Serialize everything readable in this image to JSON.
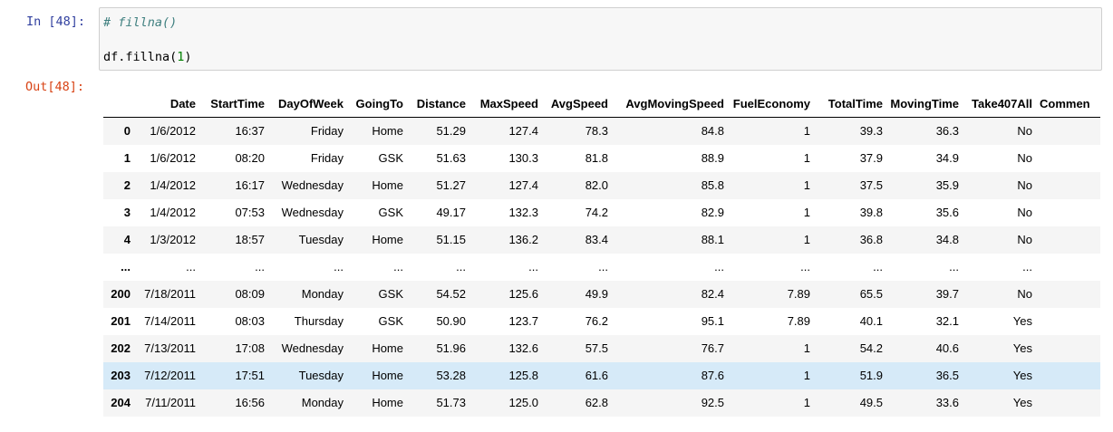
{
  "cell": {
    "in_prompt": "In [48]:",
    "out_prompt": "Out[48]:",
    "code_comment": "# fillna()",
    "code_prefix": "df.fillna(",
    "code_arg": "1",
    "code_suffix": ")"
  },
  "table": {
    "columns": [
      "Date",
      "StartTime",
      "DayOfWeek",
      "GoingTo",
      "Distance",
      "MaxSpeed",
      "AvgSpeed",
      "AvgMovingSpeed",
      "FuelEconomy",
      "TotalTime",
      "MovingTime",
      "Take407All",
      "Commen"
    ],
    "rows": [
      {
        "index": "0",
        "cells": [
          "1/6/2012",
          "16:37",
          "Friday",
          "Home",
          "51.29",
          "127.4",
          "78.3",
          "84.8",
          "1",
          "39.3",
          "36.3",
          "No",
          ""
        ]
      },
      {
        "index": "1",
        "cells": [
          "1/6/2012",
          "08:20",
          "Friday",
          "GSK",
          "51.63",
          "130.3",
          "81.8",
          "88.9",
          "1",
          "37.9",
          "34.9",
          "No",
          ""
        ]
      },
      {
        "index": "2",
        "cells": [
          "1/4/2012",
          "16:17",
          "Wednesday",
          "Home",
          "51.27",
          "127.4",
          "82.0",
          "85.8",
          "1",
          "37.5",
          "35.9",
          "No",
          ""
        ]
      },
      {
        "index": "3",
        "cells": [
          "1/4/2012",
          "07:53",
          "Wednesday",
          "GSK",
          "49.17",
          "132.3",
          "74.2",
          "82.9",
          "1",
          "39.8",
          "35.6",
          "No",
          ""
        ]
      },
      {
        "index": "4",
        "cells": [
          "1/3/2012",
          "18:57",
          "Tuesday",
          "Home",
          "51.15",
          "136.2",
          "83.4",
          "88.1",
          "1",
          "36.8",
          "34.8",
          "No",
          ""
        ]
      },
      {
        "index": "...",
        "cells": [
          "...",
          "...",
          "...",
          "...",
          "...",
          "...",
          "...",
          "...",
          "...",
          "...",
          "...",
          "...",
          ""
        ]
      },
      {
        "index": "200",
        "cells": [
          "7/18/2011",
          "08:09",
          "Monday",
          "GSK",
          "54.52",
          "125.6",
          "49.9",
          "82.4",
          "7.89",
          "65.5",
          "39.7",
          "No",
          ""
        ]
      },
      {
        "index": "201",
        "cells": [
          "7/14/2011",
          "08:03",
          "Thursday",
          "GSK",
          "50.90",
          "123.7",
          "76.2",
          "95.1",
          "7.89",
          "40.1",
          "32.1",
          "Yes",
          ""
        ]
      },
      {
        "index": "202",
        "cells": [
          "7/13/2011",
          "17:08",
          "Wednesday",
          "Home",
          "51.96",
          "132.6",
          "57.5",
          "76.7",
          "1",
          "54.2",
          "40.6",
          "Yes",
          ""
        ]
      },
      {
        "index": "203",
        "cells": [
          "7/12/2011",
          "17:51",
          "Tuesday",
          "Home",
          "53.28",
          "125.8",
          "61.6",
          "87.6",
          "1",
          "51.9",
          "36.5",
          "Yes",
          ""
        ],
        "highlighted": true
      },
      {
        "index": "204",
        "cells": [
          "7/11/2011",
          "16:56",
          "Monday",
          "Home",
          "51.73",
          "125.0",
          "62.8",
          "92.5",
          "1",
          "49.5",
          "33.6",
          "Yes",
          ""
        ]
      }
    ]
  },
  "colors": {
    "in_prompt": "#303f9f",
    "out_prompt": "#d84315",
    "highlight_row": "#d6eaf8"
  }
}
